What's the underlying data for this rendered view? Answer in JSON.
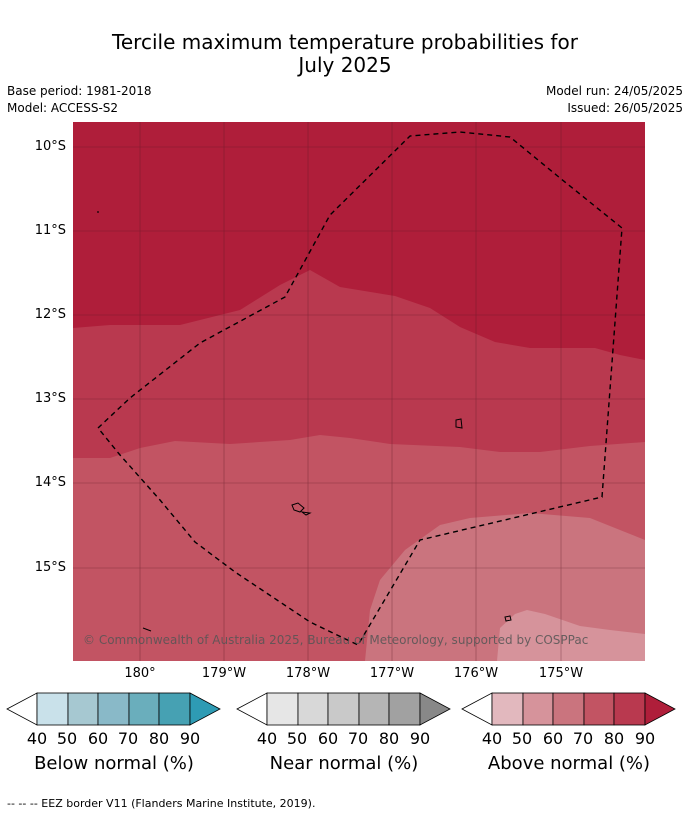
{
  "title_line1": "Tercile maximum temperature probabilities for",
  "title_line2": "July 2025",
  "base_period": "Base period: 1981-2018",
  "model": "Model: ACCESS-S2",
  "model_run": "Model run: 24/05/2025",
  "issued": "Issued: 26/05/2025",
  "lat_labels": [
    "10°S",
    "11°S",
    "12°S",
    "13°S",
    "14°S",
    "15°S"
  ],
  "lon_labels": [
    "180°",
    "179°W",
    "178°W",
    "177°W",
    "176°W",
    "175°W"
  ],
  "copyright": "© Commonwealth of Australia 2025, Bureau of Meteorology, supported by COSPPac",
  "colorbars": [
    {
      "label": "Below normal (%)",
      "ticks": [
        "40",
        "50",
        "60",
        "70",
        "80",
        "90"
      ],
      "colors": [
        "#ffffff",
        "#c9e1ea",
        "#a6c8d1",
        "#89b9c8",
        "#6aaebc",
        "#46a1b3",
        "#2e9bb4"
      ]
    },
    {
      "label": "Near normal (%)",
      "ticks": [
        "40",
        "50",
        "60",
        "70",
        "80",
        "90"
      ],
      "colors": [
        "#ffffff",
        "#e6e6e6",
        "#d8d8d8",
        "#c9c9c9",
        "#b5b5b5",
        "#a1a1a1",
        "#888888"
      ]
    },
    {
      "label": "Above normal (%)",
      "ticks": [
        "40",
        "50",
        "60",
        "70",
        "80",
        "90"
      ],
      "colors": [
        "#ffffff",
        "#e2b8be",
        "#d6939b",
        "#ca747e",
        "#c25463",
        "#b9394f",
        "#af1e3a"
      ]
    }
  ],
  "footer": "--  --  -- EEZ border V11 (Flanders Marine Institute, 2019)."
}
